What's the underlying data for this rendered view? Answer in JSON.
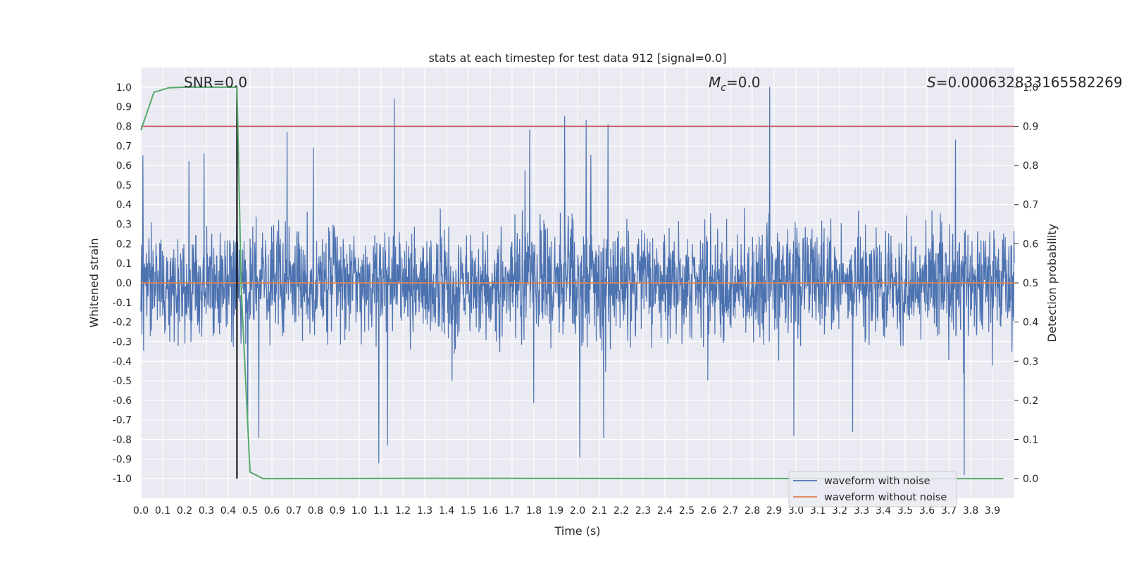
{
  "chart_data": {
    "type": "line",
    "title": "stats at each timestep for test data 912 [signal=0.0]",
    "xlabel": "Time (s)",
    "ylabel": "Whitened strain",
    "y2label": "Detection probability",
    "xlim": [
      0.0,
      4.0
    ],
    "ylim": [
      -1.1,
      1.1
    ],
    "y2lim": [
      -0.05,
      1.05
    ],
    "xticks": [
      "0.0",
      "0.1",
      "0.2",
      "0.3",
      "0.4",
      "0.5",
      "0.6",
      "0.7",
      "0.8",
      "0.9",
      "1.0",
      "1.1",
      "1.2",
      "1.3",
      "1.4",
      "1.5",
      "1.6",
      "1.7",
      "1.8",
      "1.9",
      "2.0",
      "2.1",
      "2.2",
      "2.3",
      "2.4",
      "2.5",
      "2.6",
      "2.7",
      "2.8",
      "2.9",
      "3.0",
      "3.1",
      "3.2",
      "3.3",
      "3.4",
      "3.5",
      "3.6",
      "3.7",
      "3.8",
      "3.9"
    ],
    "yticks": [
      "1.0",
      "0.9",
      "0.8",
      "0.7",
      "0.6",
      "0.5",
      "0.4",
      "0.3",
      "0.2",
      "0.1",
      "0.0",
      "-0.1",
      "-0.2",
      "-0.3",
      "-0.4",
      "-0.5",
      "-0.6",
      "-0.7",
      "-0.8",
      "-0.9",
      "-1.0"
    ],
    "y2ticks": [
      "1.0",
      "0.9",
      "0.8",
      "0.7",
      "0.6",
      "0.5",
      "0.4",
      "0.3",
      "0.2",
      "0.1",
      "0.0"
    ],
    "annotations": {
      "snr": "SNR=0.0",
      "mc_symbol": "M",
      "mc_sub": "c",
      "mc_value": "=0.0",
      "s_symbol": "S",
      "s_value": "=0.000632833165582269"
    },
    "threshold_line": {
      "axis": "y2",
      "value": 0.9,
      "color": "#c44e52"
    },
    "vertical_marker": {
      "x": 0.44,
      "color": "#000000"
    },
    "series": [
      {
        "name": "waveform with noise",
        "axis": "y",
        "color": "#4c72b0",
        "note_samples": "dense noise, roughly symmetric between about -1.0 and 1.0",
        "peaks": [
          {
            "x": 0.01,
            "y": 0.65
          },
          {
            "x": 0.22,
            "y": 0.62
          },
          {
            "x": 0.29,
            "y": 0.66
          },
          {
            "x": 0.67,
            "y": 0.77
          },
          {
            "x": 0.79,
            "y": 0.69
          },
          {
            "x": 1.16,
            "y": 0.94
          },
          {
            "x": 1.78,
            "y": 0.78
          },
          {
            "x": 1.94,
            "y": 0.85
          },
          {
            "x": 2.04,
            "y": 0.83
          },
          {
            "x": 2.14,
            "y": 0.81
          },
          {
            "x": 2.88,
            "y": 1.0
          },
          {
            "x": 3.73,
            "y": 0.73
          },
          {
            "x": 0.49,
            "y": -0.69
          },
          {
            "x": 0.54,
            "y": -0.79
          },
          {
            "x": 1.09,
            "y": -0.92
          },
          {
            "x": 1.13,
            "y": -0.83
          },
          {
            "x": 2.01,
            "y": -0.89
          },
          {
            "x": 2.12,
            "y": -0.79
          },
          {
            "x": 2.99,
            "y": -0.78
          },
          {
            "x": 3.26,
            "y": -0.76
          },
          {
            "x": 3.77,
            "y": -0.98
          }
        ]
      },
      {
        "name": "waveform without noise",
        "axis": "y",
        "color": "#dd8452",
        "points": [
          [
            0.0,
            0.0
          ],
          [
            4.0,
            0.0
          ]
        ]
      },
      {
        "name": "",
        "axis": "y2",
        "color": "#55a868",
        "points": [
          [
            0.0,
            0.89
          ],
          [
            0.06,
            0.987
          ],
          [
            0.125,
            0.998
          ],
          [
            0.2,
            1.0
          ],
          [
            0.44,
            1.0
          ],
          [
            0.46,
            0.48
          ],
          [
            0.5,
            0.017
          ],
          [
            0.56,
            0.0
          ],
          [
            1.3,
            0.001
          ],
          [
            3.95,
            0.0
          ]
        ]
      }
    ],
    "legend": {
      "placement": "lower-right",
      "entries": [
        "waveform with noise",
        "waveform without noise"
      ]
    },
    "grid": true,
    "background": "#eaeaf2"
  }
}
